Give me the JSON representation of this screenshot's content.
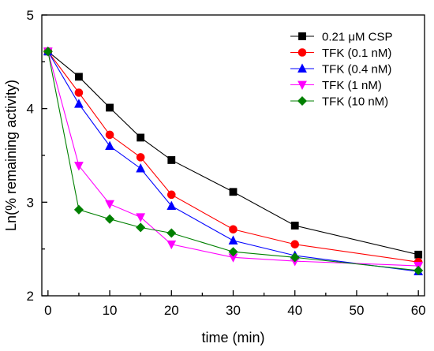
{
  "chart_data": {
    "type": "line",
    "title": "",
    "xlabel": "time (min)",
    "ylabel": "Ln(% remaining activity)",
    "xlim": [
      -1,
      61
    ],
    "ylim": [
      2,
      5
    ],
    "xticks": [
      0,
      10,
      20,
      30,
      40,
      50,
      60
    ],
    "yticks": [
      2,
      3,
      4,
      5
    ],
    "grid": false,
    "legend_position": "top-right",
    "series": [
      {
        "name": "0.21 μM CSP",
        "color": "#000000",
        "marker": "square",
        "x": [
          0,
          5,
          10,
          15,
          20,
          30,
          40,
          60
        ],
        "y": [
          4.61,
          4.34,
          4.01,
          3.69,
          3.45,
          3.11,
          2.75,
          2.44
        ]
      },
      {
        "name": "TFK (0.1 nM)",
        "color": "#ff0000",
        "marker": "circle",
        "x": [
          0,
          5,
          10,
          15,
          20,
          30,
          40,
          60
        ],
        "y": [
          4.61,
          4.17,
          3.72,
          3.48,
          3.08,
          2.71,
          2.55,
          2.36
        ]
      },
      {
        "name": "TFK (0.4 nM)",
        "color": "#0000ff",
        "marker": "triangle-up",
        "x": [
          0,
          5,
          10,
          15,
          20,
          30,
          40,
          60
        ],
        "y": [
          4.61,
          4.05,
          3.6,
          3.36,
          2.96,
          2.59,
          2.43,
          2.26
        ]
      },
      {
        "name": "TFK (1 nM)",
        "color": "#ff00ff",
        "marker": "triangle-down",
        "x": [
          0,
          5,
          10,
          15,
          20,
          30,
          40,
          60
        ],
        "y": [
          4.61,
          3.39,
          2.98,
          2.84,
          2.55,
          2.41,
          2.37,
          2.32
        ]
      },
      {
        "name": "TFK (10 nM)",
        "color": "#008000",
        "marker": "diamond",
        "x": [
          0,
          5,
          10,
          15,
          20,
          30,
          40,
          60
        ],
        "y": [
          4.61,
          2.92,
          2.82,
          2.73,
          2.67,
          2.47,
          2.41,
          2.27
        ]
      }
    ]
  }
}
